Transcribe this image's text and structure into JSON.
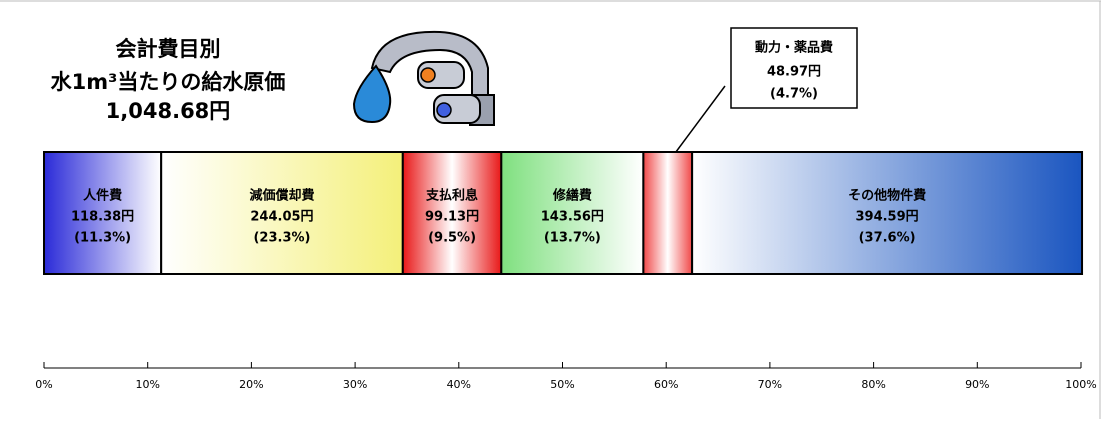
{
  "chart_data": {
    "type": "stacked_bar",
    "title": [
      "会計費目別",
      "水1m³当たりの給水原価",
      "1,048.68円"
    ],
    "xlim": [
      0,
      100
    ],
    "xticks": [
      {
        "value": 0,
        "label": "0%"
      },
      {
        "value": 10,
        "label": "10%"
      },
      {
        "value": 20,
        "label": "20%"
      },
      {
        "value": 30,
        "label": "30%"
      },
      {
        "value": 40,
        "label": "40%"
      },
      {
        "value": 50,
        "label": "50%"
      },
      {
        "value": 60,
        "label": "60%"
      },
      {
        "value": 70,
        "label": "70%"
      },
      {
        "value": 80,
        "label": "80%"
      },
      {
        "value": 90,
        "label": "90%"
      },
      {
        "value": 100,
        "label": "100%"
      }
    ],
    "series": [
      {
        "name": "人件費",
        "color": "#2b2bd8",
        "values": [
          11.3
        ],
        "value_labels": [
          "(11.3%)"
        ],
        "amount_labels": [
          "118.38円"
        ]
      },
      {
        "name": "減価償却費",
        "color": "#f4f07a",
        "values": [
          23.3
        ],
        "value_labels": [
          "(23.3%)"
        ],
        "amount_labels": [
          "244.05円"
        ]
      },
      {
        "name": "支払利息",
        "color": "#e81818",
        "values": [
          9.5
        ],
        "value_labels": [
          "(9.5%)"
        ],
        "amount_labels": [
          "99.13円"
        ]
      },
      {
        "name": "修繕費",
        "color": "#7fe07f",
        "values": [
          13.7
        ],
        "value_labels": [
          "(13.7%)"
        ],
        "amount_labels": [
          "143.56円"
        ]
      },
      {
        "name": "動力・薬品費",
        "color": "#f04848",
        "values": [
          4.7
        ],
        "value_labels": [
          "(4.7%)"
        ],
        "amount_labels": [
          "48.97円"
        ]
      },
      {
        "name": "その他物件費",
        "color": "#1a55c0",
        "values": [
          37.6
        ],
        "value_labels": [
          "(37.6%)"
        ],
        "amount_labels": [
          "394.59円"
        ]
      }
    ]
  }
}
